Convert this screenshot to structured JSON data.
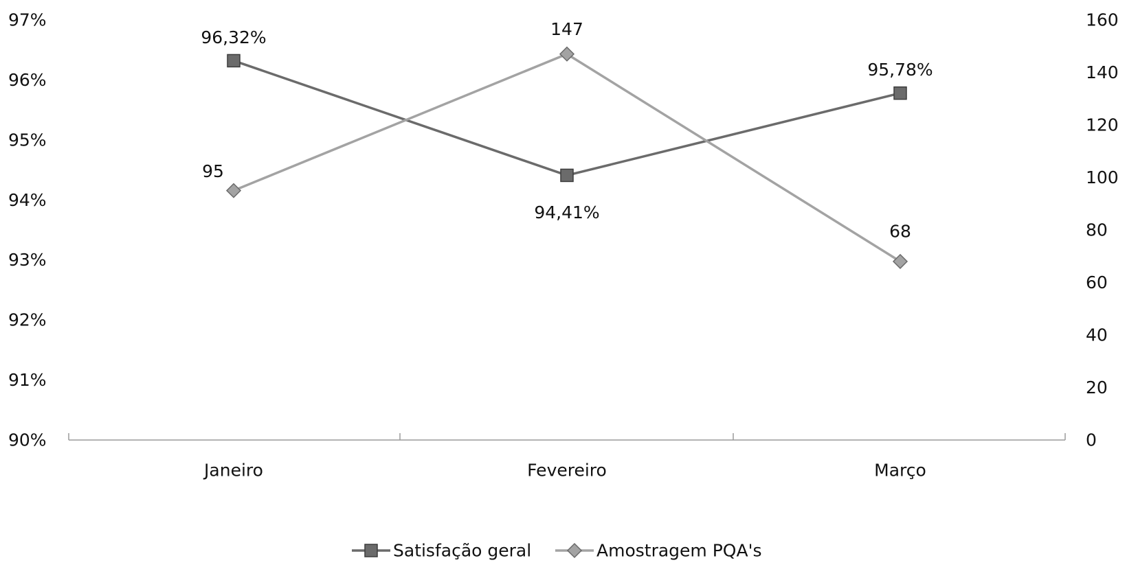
{
  "chart_data": {
    "type": "line",
    "categories": [
      "Janeiro",
      "Fevereiro",
      "Março"
    ],
    "series": [
      {
        "name": "Satisfação geral",
        "axis": "left",
        "marker": "square",
        "color": "#6b6b6b",
        "values": [
          96.32,
          94.41,
          95.78
        ],
        "labels": [
          "96,32%",
          "94,41%",
          "95,78%"
        ]
      },
      {
        "name": "Amostragem PQA's",
        "axis": "right",
        "marker": "diamond",
        "color": "#a3a3a3",
        "values": [
          95,
          147,
          68
        ],
        "labels": [
          "95",
          "147",
          "68"
        ]
      }
    ],
    "y_left": {
      "min": 90,
      "max": 97,
      "step": 1,
      "tick_labels": [
        "90%",
        "91%",
        "92%",
        "93%",
        "94%",
        "95%",
        "96%",
        "97%"
      ]
    },
    "y_right": {
      "min": 0,
      "max": 160,
      "step": 20,
      "tick_labels": [
        "0",
        "20",
        "40",
        "60",
        "80",
        "100",
        "120",
        "140",
        "160"
      ]
    },
    "grid": false,
    "legend": "bottom"
  }
}
